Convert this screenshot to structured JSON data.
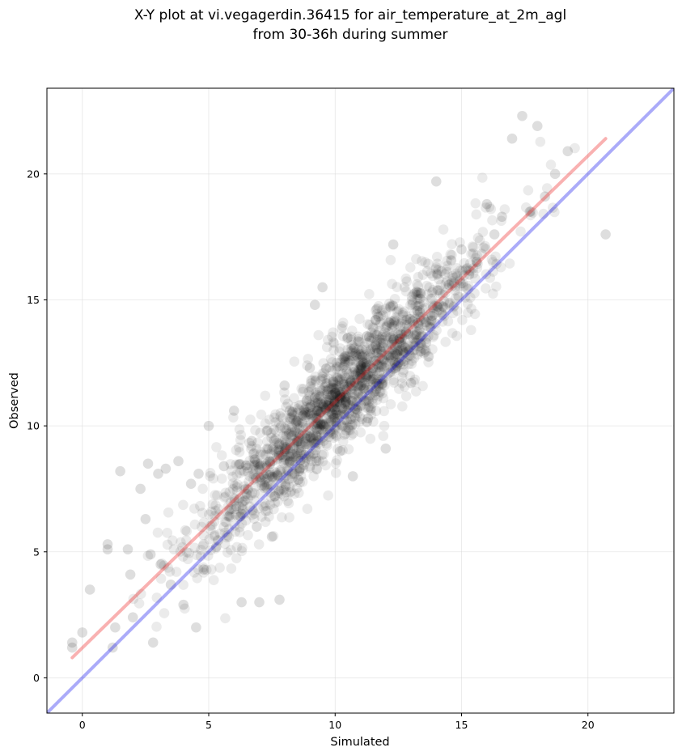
{
  "chart_data": {
    "type": "scatter",
    "title": [
      "X-Y plot at vi.vegagerdin.36415 for air_temperature_at_2m_agl",
      "from 30-36h during summer"
    ],
    "xlabel": "Simulated",
    "ylabel": "Observed",
    "xlim": [
      -1.4,
      23.4
    ],
    "ylim": [
      -1.4,
      23.4
    ],
    "xticks": [
      0,
      5,
      10,
      15,
      20
    ],
    "yticks": [
      0,
      5,
      10,
      15,
      20
    ],
    "grid": true,
    "point_color": "#000000",
    "point_opacity": 0.08,
    "reference_line": {
      "name": "1:1",
      "color": "#0000ee",
      "opacity": 0.33,
      "x": [
        -1.4,
        23.4
      ],
      "y": [
        -1.4,
        23.4
      ]
    },
    "fit_line": {
      "name": "linear fit",
      "color": "#ee1111",
      "opacity": 0.33,
      "x": [
        -0.4,
        20.7
      ],
      "y": [
        0.8,
        21.4
      ]
    },
    "sample_points": {
      "x": [
        -0.4,
        -0.4,
        0.0,
        0.3,
        1.0,
        1.0,
        1.2,
        1.3,
        1.5,
        1.8,
        1.9,
        2.0,
        2.3,
        2.5,
        2.6,
        2.7,
        2.8,
        3.0,
        3.1,
        3.3,
        3.5,
        3.8,
        4.0,
        4.3,
        4.5,
        4.6,
        4.8,
        5.0,
        5.3,
        5.6,
        5.8,
        6.0,
        6.3,
        6.5,
        6.7,
        6.9,
        7.0,
        7.3,
        7.5,
        7.6,
        7.8,
        8.0,
        8.2,
        8.5,
        8.6,
        9.0,
        9.2,
        9.3,
        9.5,
        10.0,
        10.2,
        10.5,
        10.7,
        11.0,
        11.3,
        11.6,
        12.0,
        12.3,
        12.5,
        13.0,
        13.3,
        13.6,
        14.0,
        14.2,
        14.5,
        15.0,
        15.3,
        15.6,
        16.0,
        16.3,
        16.6,
        17.0,
        17.4,
        17.7,
        18.0,
        18.3,
        18.7,
        19.2,
        20.7
      ],
      "y": [
        1.2,
        1.4,
        1.8,
        3.5,
        5.1,
        5.3,
        1.2,
        2.0,
        8.2,
        5.1,
        4.1,
        2.4,
        7.5,
        6.3,
        8.5,
        4.9,
        1.4,
        8.1,
        4.5,
        8.3,
        3.7,
        8.6,
        2.9,
        7.7,
        2.0,
        8.1,
        4.3,
        10.0,
        5.2,
        8.4,
        6.4,
        10.6,
        3.0,
        7.3,
        9.4,
        6.0,
        3.0,
        9.8,
        5.6,
        7.2,
        3.1,
        11.6,
        10.6,
        9.4,
        8.3,
        12.3,
        14.8,
        10.6,
        15.5,
        11.3,
        9.0,
        13.5,
        8.0,
        12.0,
        10.3,
        14.2,
        9.1,
        17.2,
        12.5,
        11.7,
        14.0,
        13.3,
        19.7,
        14.5,
        15.6,
        17.0,
        16.0,
        16.5,
        18.8,
        17.6,
        18.3,
        21.4,
        22.3,
        18.5,
        21.9,
        19.1,
        20.0,
        20.9,
        17.6
      ]
    }
  }
}
